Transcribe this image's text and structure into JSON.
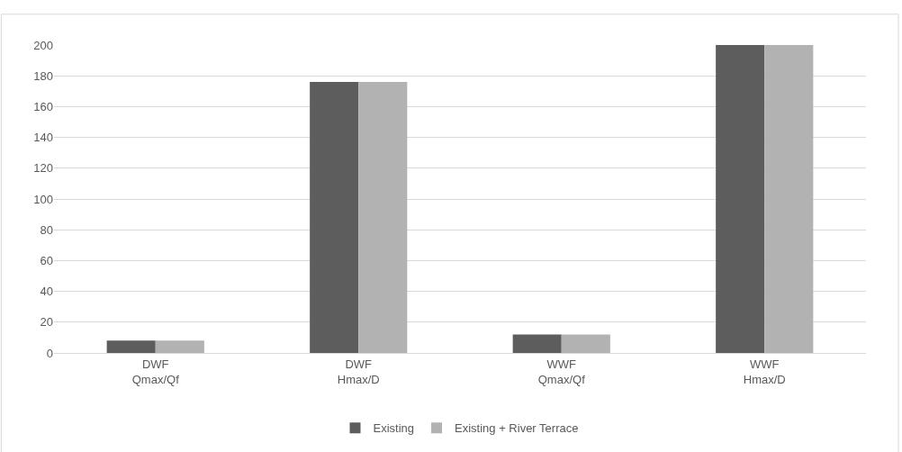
{
  "chart_data": {
    "type": "bar",
    "categories": [
      "DWF\nQmax/Qf",
      "DWF\nHmax/D",
      "WWF\nQmax/Qf",
      "WWF\nHmax/D"
    ],
    "series": [
      {
        "name": "Existing",
        "color": "#5d5d5d",
        "values": [
          8,
          176,
          12,
          200
        ]
      },
      {
        "name": "Existing + River Terrace",
        "color": "#b2b2b2",
        "values": [
          8,
          176,
          12,
          200
        ]
      }
    ],
    "ylim": [
      0,
      200
    ],
    "yticks": [
      0,
      20,
      40,
      60,
      80,
      100,
      120,
      140,
      160,
      180,
      200
    ],
    "grid": "y",
    "legend": "bottom"
  }
}
